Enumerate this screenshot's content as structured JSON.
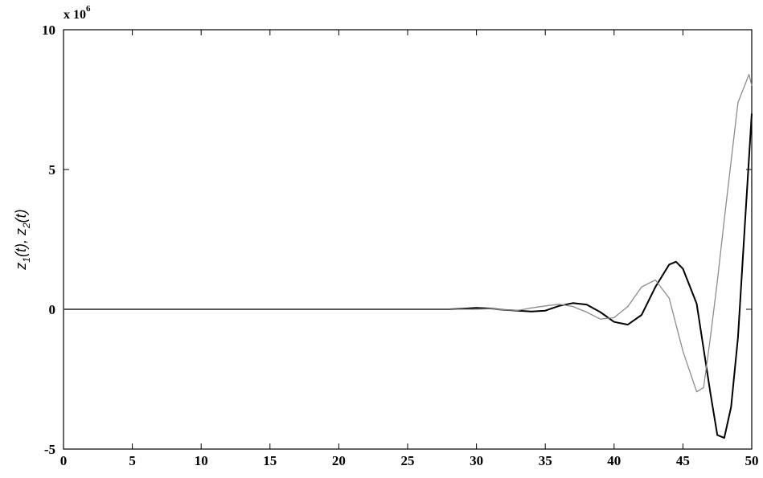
{
  "chart_data": {
    "type": "line",
    "xlim": [
      0,
      50
    ],
    "ylim": [
      -5,
      10
    ],
    "x_ticks": [
      0,
      5,
      10,
      15,
      20,
      25,
      30,
      35,
      40,
      45,
      50
    ],
    "y_ticks": [
      -5,
      0,
      5,
      10
    ],
    "y_tick_labels": [
      "-5",
      "0",
      "5",
      "10"
    ],
    "y_multiplier": {
      "base": "x 10",
      "exponent": "6"
    },
    "ylabel": {
      "z1": "z",
      "s1": "1",
      "t1": "(t), ",
      "z2": "z",
      "s2": "2",
      "t2": "(t)"
    },
    "xlabel": "",
    "grid": false,
    "series": [
      {
        "color": "#000000",
        "points": [
          [
            0,
            0
          ],
          [
            28,
            0
          ],
          [
            29,
            0.02
          ],
          [
            30,
            0.05
          ],
          [
            31,
            0.03
          ],
          [
            32,
            -0.02
          ],
          [
            33,
            -0.05
          ],
          [
            34,
            -0.08
          ],
          [
            35,
            -0.05
          ],
          [
            36,
            0.12
          ],
          [
            37,
            0.22
          ],
          [
            38,
            0.17
          ],
          [
            39,
            -0.1
          ],
          [
            40,
            -0.45
          ],
          [
            41,
            -0.55
          ],
          [
            42,
            -0.2
          ],
          [
            43,
            0.8
          ],
          [
            44,
            1.6
          ],
          [
            44.5,
            1.7
          ],
          [
            45,
            1.45
          ],
          [
            46,
            0.2
          ],
          [
            47,
            -3.0
          ],
          [
            47.5,
            -4.5
          ],
          [
            48,
            -4.6
          ],
          [
            48.5,
            -3.5
          ],
          [
            49,
            -1.0
          ],
          [
            49.5,
            3.0
          ],
          [
            50,
            7.0
          ]
        ]
      },
      {
        "color": "#8c8c8c",
        "points": [
          [
            0,
            0
          ],
          [
            30,
            0
          ],
          [
            31,
            0.02
          ],
          [
            32,
            -0.02
          ],
          [
            33,
            -0.04
          ],
          [
            34,
            0.05
          ],
          [
            35,
            0.12
          ],
          [
            36,
            0.18
          ],
          [
            37,
            0.1
          ],
          [
            38,
            -0.1
          ],
          [
            39,
            -0.35
          ],
          [
            40,
            -0.3
          ],
          [
            41,
            0.1
          ],
          [
            42,
            0.8
          ],
          [
            43,
            1.05
          ],
          [
            44,
            0.4
          ],
          [
            45,
            -1.5
          ],
          [
            46,
            -2.95
          ],
          [
            46.5,
            -2.8
          ],
          [
            47,
            -1.0
          ],
          [
            47.5,
            1.0
          ],
          [
            48,
            3.2
          ],
          [
            49,
            7.4
          ],
          [
            49.8,
            8.4
          ],
          [
            50,
            8.0
          ]
        ]
      }
    ]
  }
}
